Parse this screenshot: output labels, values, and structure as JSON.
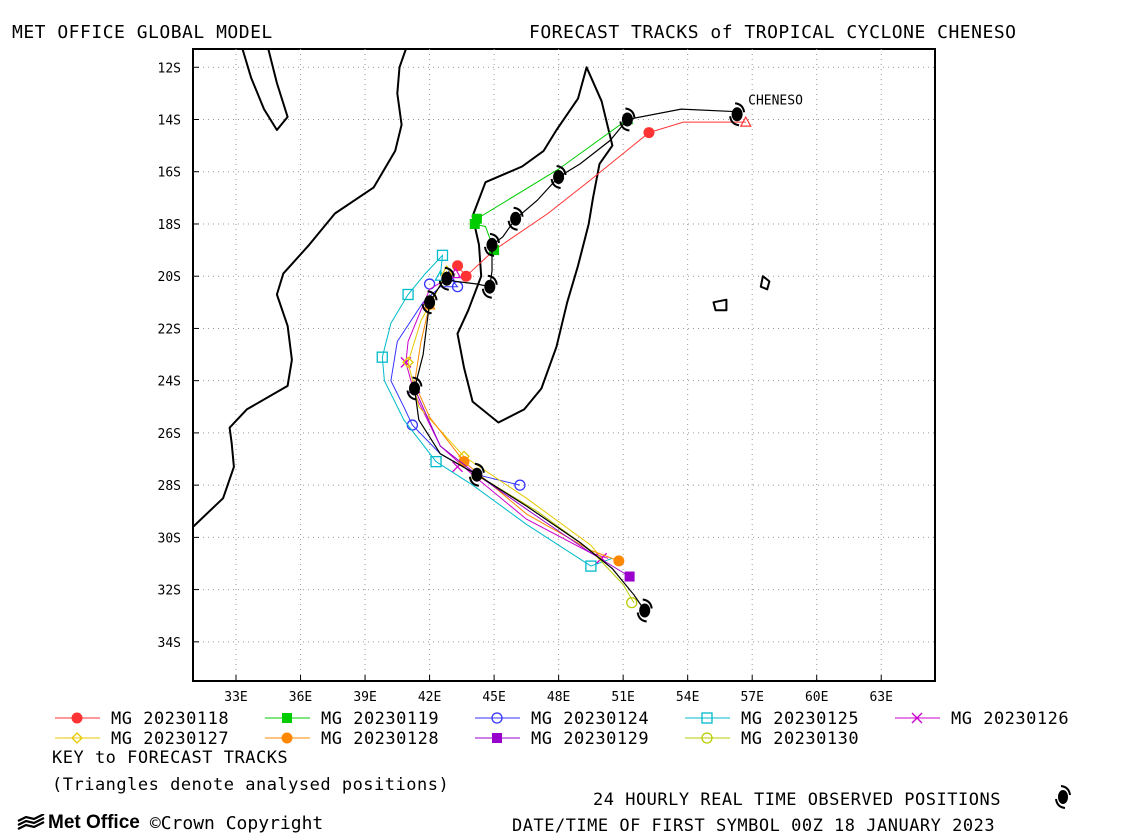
{
  "header": {
    "left": "MET OFFICE GLOBAL MODEL",
    "right": "FORECAST TRACKS of TROPICAL CYCLONE CHENESO"
  },
  "chart_data": {
    "type": "line",
    "title": "FORECAST TRACKS of TROPICAL CYCLONE CHENESO",
    "storm_label": "CHENESO",
    "xlim": [
      31,
      65.5
    ],
    "ylim": [
      -35.5,
      -11.3
    ],
    "x_ticks": [
      33,
      36,
      39,
      42,
      45,
      48,
      51,
      54,
      57,
      60,
      63
    ],
    "x_tick_labels": [
      "33E",
      "36E",
      "39E",
      "42E",
      "45E",
      "48E",
      "51E",
      "54E",
      "57E",
      "60E",
      "63E"
    ],
    "y_ticks": [
      -12,
      -14,
      -16,
      -18,
      -20,
      -22,
      -24,
      -26,
      -28,
      -30,
      -32,
      -34
    ],
    "y_tick_labels": [
      "12S",
      "14S",
      "16S",
      "18S",
      "20S",
      "22S",
      "24S",
      "26S",
      "28S",
      "30S",
      "32S",
      "34S"
    ],
    "grid": true,
    "observed": {
      "name": "24 HOURLY REAL TIME OBSERVED POSITIONS",
      "path": [
        [
          56.3,
          -13.7
        ],
        [
          53.7,
          -13.6
        ],
        [
          51.2,
          -14.0
        ],
        [
          50.4,
          -14.8
        ],
        [
          49.0,
          -15.7
        ],
        [
          48.0,
          -16.2
        ],
        [
          47.0,
          -17.1
        ],
        [
          46.0,
          -17.8
        ],
        [
          45.4,
          -18.5
        ],
        [
          44.9,
          -18.8
        ],
        [
          44.9,
          -19.8
        ],
        [
          44.8,
          -20.4
        ],
        [
          44.2,
          -20.3
        ],
        [
          43.2,
          -20.2
        ],
        [
          42.7,
          -20.1
        ],
        [
          42.3,
          -20.6
        ],
        [
          42.0,
          -21.0
        ],
        [
          41.7,
          -23.0
        ],
        [
          41.3,
          -24.3
        ],
        [
          41.5,
          -25.5
        ],
        [
          42.5,
          -26.8
        ],
        [
          44.2,
          -27.6
        ],
        [
          46.5,
          -28.8
        ],
        [
          49.0,
          -30.2
        ],
        [
          50.5,
          -31.2
        ],
        [
          51.5,
          -32.2
        ],
        [
          52.0,
          -32.8
        ]
      ],
      "symbols": [
        [
          56.3,
          -13.8
        ],
        [
          51.2,
          -14.0
        ],
        [
          48.0,
          -16.2
        ],
        [
          46.0,
          -17.8
        ],
        [
          44.9,
          -18.8
        ],
        [
          44.8,
          -20.4
        ],
        [
          42.8,
          -20.1
        ],
        [
          42.0,
          -21.0
        ],
        [
          41.3,
          -24.3
        ],
        [
          44.2,
          -27.6
        ],
        [
          52.0,
          -32.8
        ]
      ]
    },
    "legend": {
      "position": "bottom",
      "key_title": "KEY to FORECAST TRACKS",
      "note": "(Triangles denote analysed positions)"
    },
    "series": [
      {
        "name": "MG 20230118",
        "color": "#ff3333",
        "marker": "filled-circle",
        "analysed": [
          56.7,
          -14.1
        ],
        "x": [
          56.7,
          53.8,
          52.2,
          49.5,
          47.5,
          45.0,
          43.7,
          43.3
        ],
        "y": [
          -14.1,
          -14.1,
          -14.5,
          -16.3,
          -17.6,
          -19.0,
          -20.0,
          -19.6
        ],
        "marked": [
          [
            52.2,
            -14.5
          ],
          [
            43.7,
            -20.0
          ],
          [
            43.3,
            -19.6
          ]
        ]
      },
      {
        "name": "MG 20230119",
        "color": "#00cc00",
        "marker": "filled-square",
        "analysed": [
          51.2,
          -14.0
        ],
        "x": [
          51.2,
          48.0,
          44.2,
          44.1,
          44.6,
          45.0
        ],
        "y": [
          -14.0,
          -15.9,
          -17.8,
          -18.0,
          -18.1,
          -19.0
        ],
        "marked": [
          [
            44.2,
            -17.8
          ],
          [
            44.1,
            -18.0
          ],
          [
            45.0,
            -19.0
          ]
        ]
      },
      {
        "name": "MG 20230124",
        "color": "#3333ff",
        "marker": "open-circle",
        "analysed": [
          42.9,
          -20.0
        ],
        "x": [
          42.9,
          43.3,
          42.5,
          41.7,
          40.5,
          40.2,
          40.8,
          41.2,
          42.5,
          44.2,
          46.2
        ],
        "y": [
          -20.0,
          -20.4,
          -20.4,
          -21.0,
          -22.5,
          -24.0,
          -25.0,
          -25.7,
          -26.8,
          -27.6,
          -28.0
        ],
        "marked": [
          [
            43.3,
            -20.4
          ],
          [
            42.0,
            -20.3
          ],
          [
            41.2,
            -25.7
          ],
          [
            46.2,
            -28.0
          ]
        ]
      },
      {
        "name": "MG 20230125",
        "color": "#00bbcc",
        "marker": "open-square",
        "analysed": [
          42.5,
          -20.0
        ],
        "x": [
          42.5,
          42.6,
          41.8,
          41.0,
          40.2,
          39.8,
          39.9,
          40.8,
          42.3,
          44.0,
          46.5,
          49.5,
          50.5
        ],
        "y": [
          -20.0,
          -19.2,
          -19.9,
          -20.7,
          -21.8,
          -23.1,
          -24.0,
          -25.5,
          -27.1,
          -28.0,
          -29.5,
          -31.1,
          -30.8
        ],
        "marked": [
          [
            42.6,
            -19.2
          ],
          [
            41.0,
            -20.7
          ],
          [
            39.8,
            -23.1
          ],
          [
            42.3,
            -27.1
          ],
          [
            49.5,
            -31.1
          ]
        ]
      },
      {
        "name": "MG 20230126",
        "color": "#cc00cc",
        "marker": "x",
        "analysed": [
          43.2,
          -19.9
        ],
        "x": [
          43.2,
          42.0,
          41.5,
          41.0,
          40.9,
          41.3,
          42.5,
          44.0,
          46.5,
          49.5,
          50.3
        ],
        "y": [
          -19.9,
          -20.5,
          -21.5,
          -22.5,
          -23.3,
          -24.5,
          -26.5,
          -27.6,
          -29.3,
          -30.6,
          -30.8
        ],
        "marked": [
          [
            40.9,
            -23.3
          ],
          [
            43.3,
            -27.3
          ],
          [
            50.0,
            -30.8
          ]
        ]
      },
      {
        "name": "MG 20230127",
        "color": "#e8c800",
        "marker": "open-diamond",
        "analysed": [
          42.8,
          -19.8
        ],
        "x": [
          42.8,
          42.2,
          41.6,
          41.0,
          41.5,
          43.6,
          46.5,
          49.5,
          50.0
        ],
        "y": [
          -19.8,
          -20.8,
          -21.7,
          -23.3,
          -25.0,
          -26.9,
          -28.5,
          -30.3,
          -30.8
        ],
        "marked": [
          [
            42.0,
            -21.1
          ],
          [
            41.0,
            -23.3
          ],
          [
            43.6,
            -26.9
          ]
        ]
      },
      {
        "name": "MG 20230128",
        "color": "#ff8800",
        "marker": "filled-circle",
        "analysed": [
          42.0,
          -21.1
        ],
        "x": [
          42.0,
          41.6,
          41.3,
          42.0,
          43.6,
          46.5,
          49.5,
          50.8
        ],
        "y": [
          -21.1,
          -22.5,
          -24.1,
          -25.4,
          -27.1,
          -29.1,
          -30.5,
          -30.9
        ],
        "marked": [
          [
            43.6,
            -27.1
          ],
          [
            50.8,
            -30.9
          ]
        ]
      },
      {
        "name": "MG 20230129",
        "color": "#9900cc",
        "marker": "filled-square",
        "analysed": [
          41.3,
          -24.3
        ],
        "x": [
          41.3,
          42.5,
          44.2,
          47.0,
          49.5,
          51.3
        ],
        "y": [
          -24.3,
          -26.5,
          -27.6,
          -29.2,
          -30.6,
          -31.5
        ],
        "marked": [
          [
            51.3,
            -31.5
          ]
        ]
      },
      {
        "name": "MG 20230130",
        "color": "#b8cc00",
        "marker": "open-circle",
        "analysed": [
          44.2,
          -27.6
        ],
        "x": [
          44.2,
          47.0,
          49.5,
          51.0,
          51.5
        ],
        "y": [
          -27.6,
          -29.0,
          -30.5,
          -31.8,
          -32.5
        ],
        "marked": [
          [
            51.4,
            -32.5
          ]
        ]
      }
    ]
  },
  "footer": {
    "observed_label": "24 HOURLY REAL TIME OBSERVED POSITIONS",
    "datetime": "DATE/TIME OF FIRST SYMBOL 00Z 18 JANUARY 2023",
    "brand": "Met Office",
    "copyright": "©Crown Copyright"
  }
}
